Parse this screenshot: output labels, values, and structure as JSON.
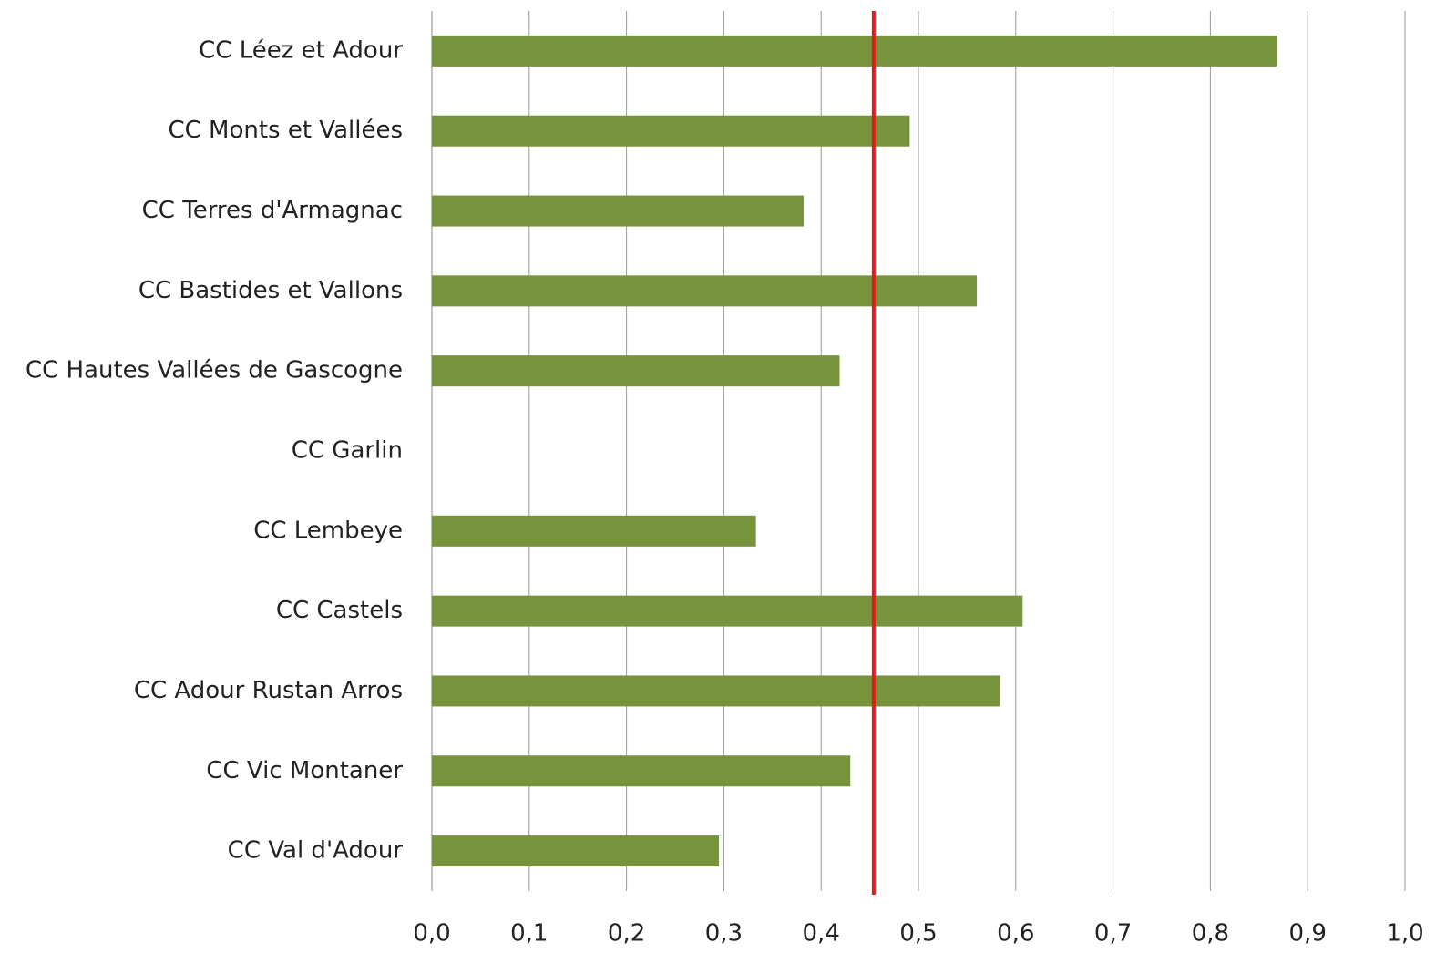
{
  "chart_data": {
    "type": "barh",
    "categories": [
      "CC Léez et Adour",
      "CC Monts et Vallées",
      "CC Terres d'Armagnac",
      "CC Bastides et Vallons",
      "CC Hautes Vallées de Gascogne",
      "CC Garlin",
      "CC Lembeye",
      "CC Castels",
      "CC Adour Rustan Arros",
      "CC Vic Montaner",
      "CC Val d'Adour"
    ],
    "values": [
      0.868,
      0.491,
      0.382,
      0.56,
      0.419,
      null,
      0.333,
      0.607,
      0.584,
      0.43,
      0.295
    ],
    "color": "#77933c",
    "xlim": [
      0,
      1
    ],
    "xticks": [
      {
        "value": 0,
        "label": "0,0"
      },
      {
        "value": 0.1,
        "label": "0,1"
      },
      {
        "value": 0.2,
        "label": "0,2"
      },
      {
        "value": 0.3,
        "label": "0,3"
      },
      {
        "value": 0.4,
        "label": "0,4"
      },
      {
        "value": 0.5,
        "label": "0,5"
      },
      {
        "value": 0.6,
        "label": "0,6"
      },
      {
        "value": 0.7,
        "label": "0,7"
      },
      {
        "value": 0.8,
        "label": "0,8"
      },
      {
        "value": 0.9,
        "label": "0,9"
      },
      {
        "value": 1,
        "label": "1,0"
      }
    ],
    "grid": true,
    "reference_line": {
      "value": 0.454,
      "color": "#e41a1c"
    }
  }
}
